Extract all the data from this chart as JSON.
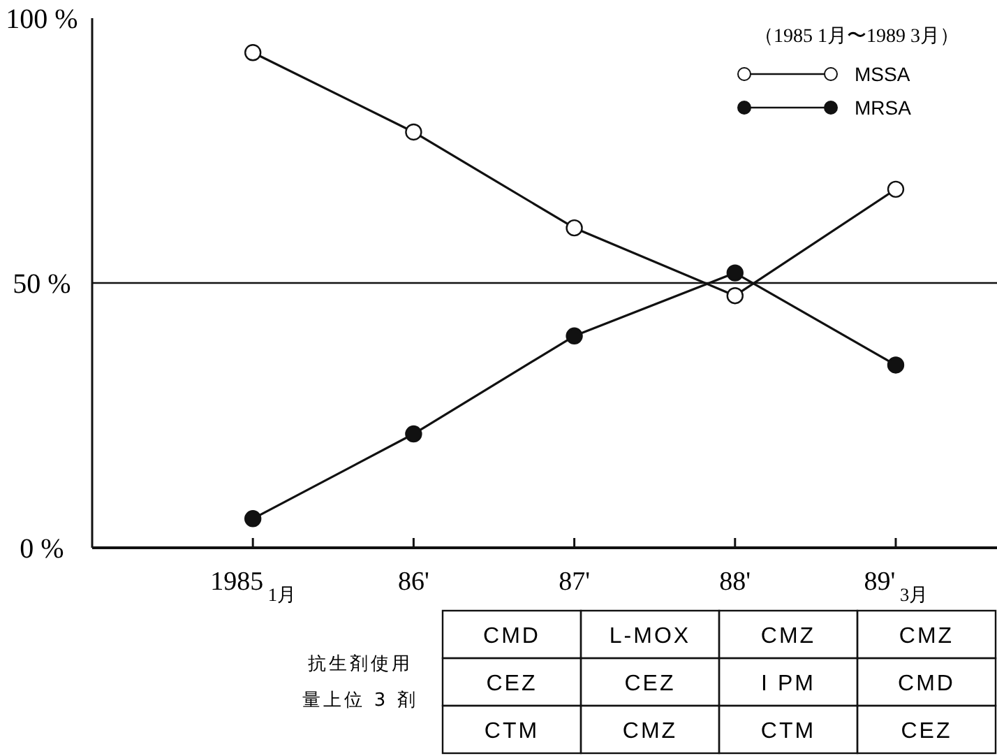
{
  "chart_data": {
    "type": "line",
    "categories": [
      "1985$_{1月}$",
      "86'",
      "87'",
      "88'",
      "89'$_{3月}$"
    ],
    "series": [
      {
        "name": "MSSA",
        "color": "#ffffff",
        "values": [
          93.5,
          78.5,
          60.4,
          47.6,
          67.7
        ]
      },
      {
        "name": "MRSA",
        "color": "#111111",
        "values": [
          5.5,
          21.5,
          40.0,
          51.9,
          34.5
        ]
      }
    ],
    "ylim": [
      0,
      100
    ],
    "yticks": [
      {
        "value": 0,
        "label": "0 %"
      },
      {
        "value": 50,
        "label": "50 %"
      },
      {
        "value": 100,
        "label": "100 %"
      }
    ],
    "ref_lines": [
      {
        "axis": "y",
        "value": 50
      }
    ],
    "legend": "top right",
    "legend_title": "（1985 1月〜1989 3月）",
    "marker": "circle",
    "grid": false,
    "annotations": [
      "抗生剤使用",
      "量上位 3 剤",
      "CMD",
      "L-MOX",
      "CMZ",
      "CMZ",
      "CEZ",
      "CEZ",
      "I PM",
      "CMD",
      "CTM",
      "CMZ",
      "CTM",
      "CEZ"
    ]
  }
}
